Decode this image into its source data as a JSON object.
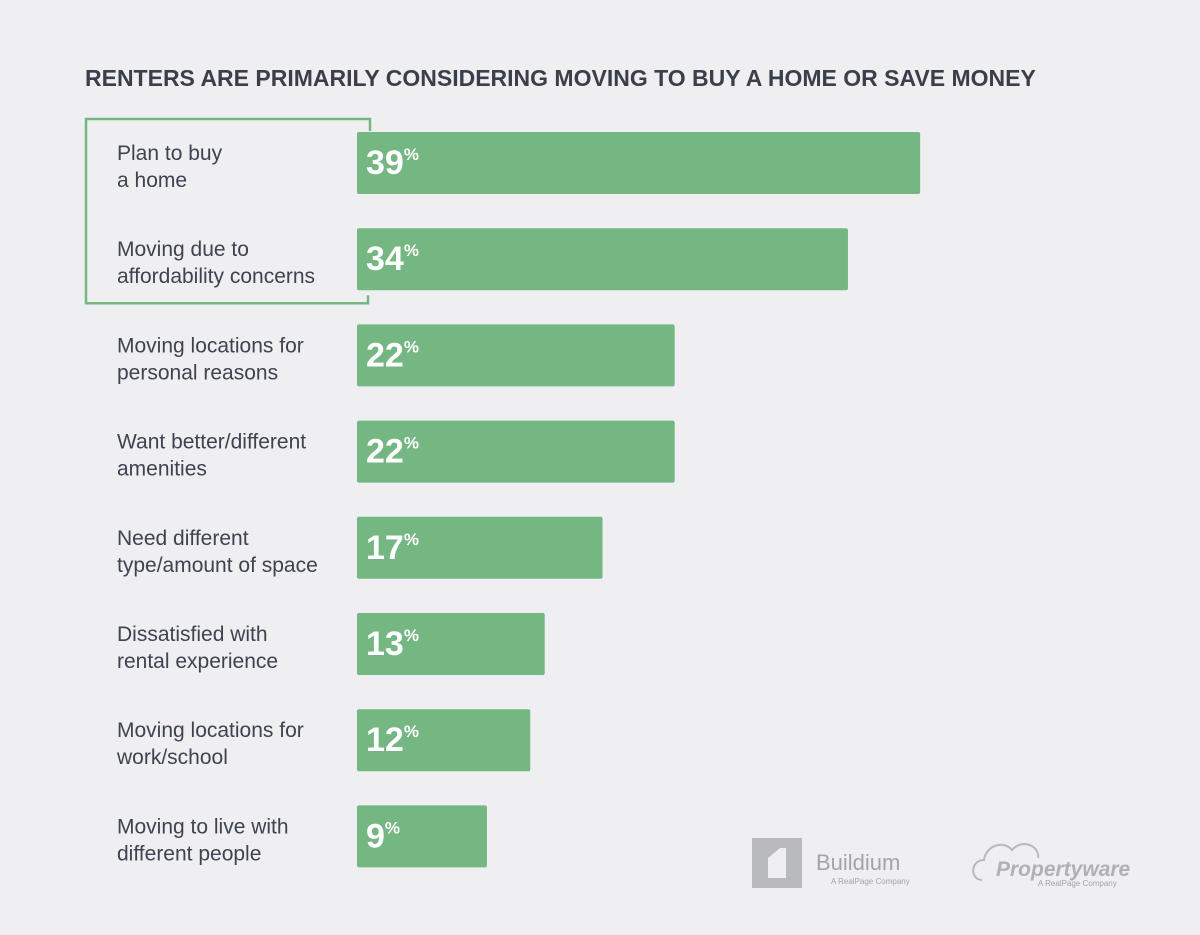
{
  "chart_data": {
    "type": "bar",
    "orientation": "horizontal",
    "title": "RENTERS ARE PRIMARILY CONSIDERING MOVING TO BUY A HOME OR SAVE MONEY",
    "categories": [
      "Plan to buy\na home",
      "Moving due to\naffordability concerns",
      "Moving locations for\npersonal reasons",
      "Want better/different\namenities",
      "Need different\ntype/amount of space",
      "Dissatisfied with\nrental experience",
      "Moving locations for\nwork/school",
      "Moving to live with\ndifferent people"
    ],
    "values": [
      39,
      34,
      22,
      22,
      17,
      13,
      12,
      9
    ],
    "value_labels": [
      "39%",
      "34%",
      "22%",
      "22%",
      "17%",
      "13%",
      "12%",
      "9%"
    ],
    "color": "#74b782",
    "highlighted": [
      0,
      1
    ]
  },
  "logos": [
    {
      "name": "Buildium",
      "tagline": "A RealPage Company"
    },
    {
      "name": "Propertyware",
      "tagline": "A RealPage Company"
    }
  ]
}
